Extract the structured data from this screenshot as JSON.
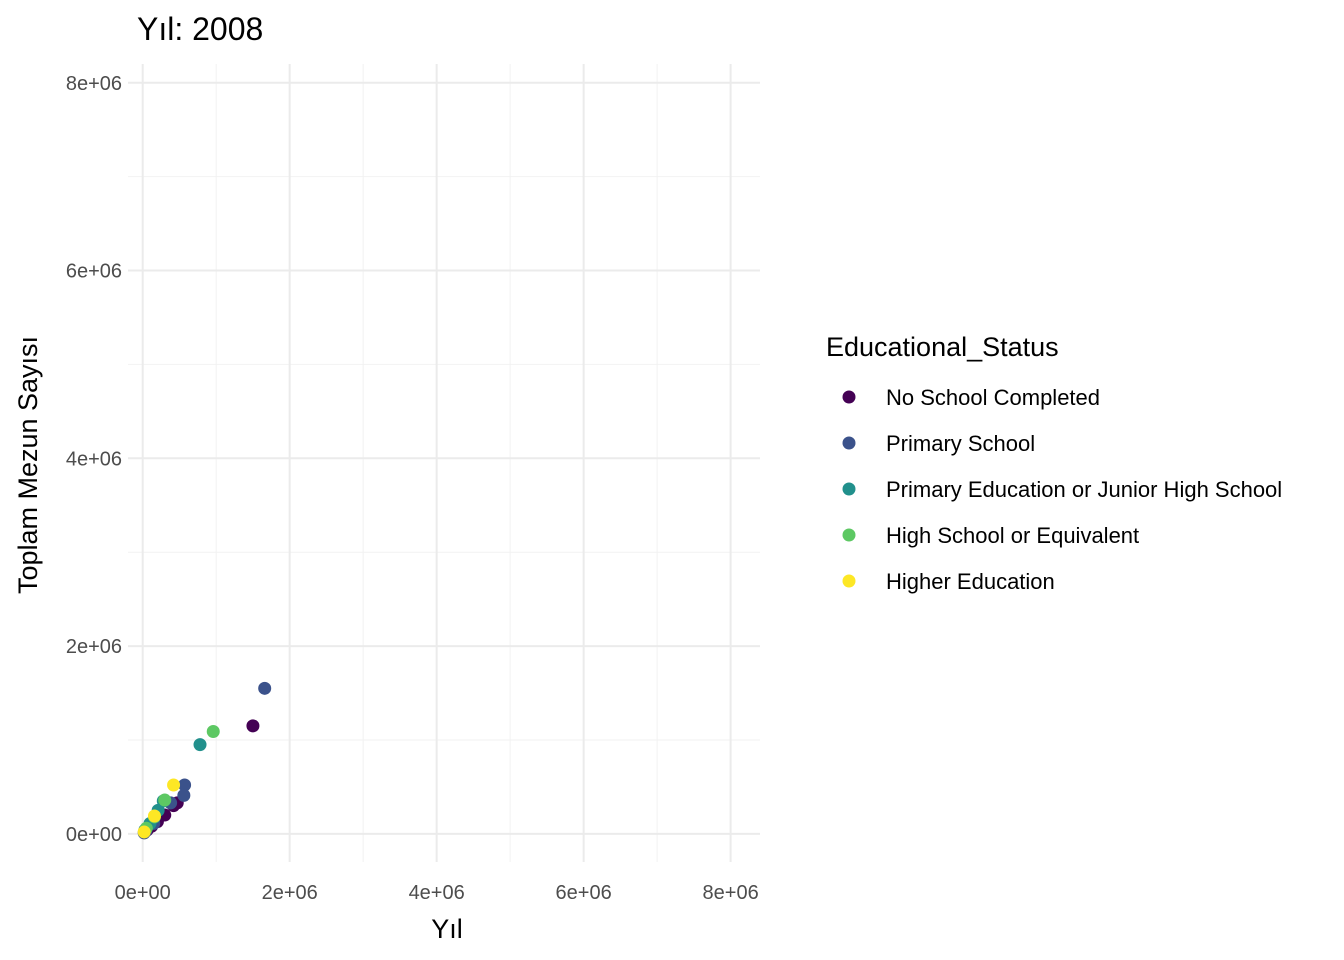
{
  "chart_data": {
    "type": "scatter",
    "title": "Yıl: 2008",
    "xlabel": "Yıl",
    "ylabel": "Toplam Mezun Sayısı",
    "xlim": [
      -200000,
      8400000
    ],
    "ylim": [
      -300000,
      8200000
    ],
    "x_ticks": [
      {
        "value": 0,
        "label": "0e+00"
      },
      {
        "value": 2000000,
        "label": "2e+06"
      },
      {
        "value": 4000000,
        "label": "4e+06"
      },
      {
        "value": 6000000,
        "label": "6e+06"
      },
      {
        "value": 8000000,
        "label": "8e+06"
      }
    ],
    "y_ticks": [
      {
        "value": 0,
        "label": "0e+00"
      },
      {
        "value": 2000000,
        "label": "2e+06"
      },
      {
        "value": 4000000,
        "label": "4e+06"
      },
      {
        "value": 6000000,
        "label": "6e+06"
      },
      {
        "value": 8000000,
        "label": "8e+06"
      }
    ],
    "grid": true,
    "legend": {
      "title": "Educational_Status",
      "placement": "right"
    },
    "series": [
      {
        "name": "No School Completed",
        "color": "#440154",
        "points": [
          [
            1500000,
            1150000
          ],
          [
            470000,
            330000
          ],
          [
            420000,
            300000
          ],
          [
            300000,
            200000
          ],
          [
            200000,
            130000
          ],
          [
            120000,
            80000
          ],
          [
            60000,
            40000
          ]
        ]
      },
      {
        "name": "Primary School",
        "color": "#3B528B",
        "points": [
          [
            1660000,
            1550000
          ],
          [
            570000,
            520000
          ],
          [
            560000,
            410000
          ],
          [
            380000,
            330000
          ],
          [
            150000,
            110000
          ],
          [
            40000,
            30000
          ],
          [
            20000,
            10000
          ]
        ]
      },
      {
        "name": "Primary Education or Junior High School",
        "color": "#21908C",
        "points": [
          [
            780000,
            950000
          ],
          [
            280000,
            350000
          ],
          [
            210000,
            250000
          ],
          [
            100000,
            110000
          ],
          [
            30000,
            40000
          ]
        ]
      },
      {
        "name": "High School or Equivalent",
        "color": "#5DC863",
        "points": [
          [
            960000,
            1090000
          ],
          [
            300000,
            360000
          ],
          [
            160000,
            180000
          ],
          [
            50000,
            60000
          ]
        ]
      },
      {
        "name": "Higher Education",
        "color": "#FDE725",
        "points": [
          [
            420000,
            520000
          ],
          [
            160000,
            190000
          ],
          [
            20000,
            20000
          ]
        ]
      }
    ]
  }
}
